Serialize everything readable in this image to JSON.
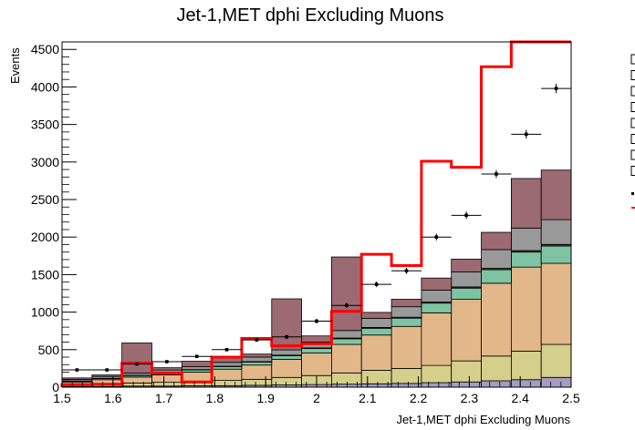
{
  "chart_data": {
    "type": "histogram",
    "title": "Jet-1,MET dphi Excluding Muons",
    "xlabel": "Jet-1,MET dphi Excluding Muons",
    "ylabel": "Events",
    "xlim": [
      1.5,
      2.5
    ],
    "ylim": [
      0,
      4600
    ],
    "bin_edges": [
      1.5,
      1.5588,
      1.6176,
      1.6765,
      1.7353,
      1.7941,
      1.8529,
      1.9118,
      1.9706,
      2.0294,
      2.0882,
      2.1471,
      2.2059,
      2.2647,
      2.3235,
      2.3824,
      2.4412,
      2.5
    ],
    "x_ticks": [
      1.5,
      1.6,
      1.7,
      1.8,
      1.9,
      2.0,
      2.1,
      2.2,
      2.3,
      2.4,
      2.5
    ],
    "x_tick_labels": [
      "1.5",
      "1.6",
      "1.7",
      "1.8",
      "1.9",
      "2",
      "2.1",
      "2.2",
      "2.3",
      "2.4",
      "2.5"
    ],
    "y_ticks": [
      0,
      500,
      1000,
      1500,
      2000,
      2500,
      3000,
      3500,
      4000,
      4500
    ],
    "y_tick_labels": [
      "0",
      "500",
      "1000",
      "1500",
      "2000",
      "2500",
      "3000",
      "3500",
      "4000",
      "4500"
    ],
    "stack": [
      {
        "color": "#a49dbf",
        "values": [
          10,
          10,
          15,
          15,
          20,
          20,
          25,
          30,
          35,
          40,
          45,
          50,
          60,
          70,
          85,
          100,
          130
        ]
      },
      {
        "color": "#d4cf8a",
        "values": [
          20,
          30,
          40,
          50,
          60,
          70,
          80,
          100,
          120,
          150,
          180,
          200,
          230,
          280,
          330,
          380,
          440
        ]
      },
      {
        "color": "#e2b88a",
        "values": [
          40,
          60,
          80,
          100,
          120,
          150,
          190,
          240,
          300,
          380,
          470,
          560,
          700,
          820,
          970,
          1120,
          1080
        ]
      },
      {
        "color": "#7fc4a2",
        "values": [
          10,
          15,
          20,
          25,
          30,
          35,
          40,
          50,
          60,
          75,
          90,
          110,
          130,
          150,
          180,
          200,
          230
        ]
      },
      {
        "color": "#3c3c3c",
        "values": [
          3,
          3,
          4,
          4,
          5,
          5,
          6,
          7,
          8,
          10,
          11,
          12,
          14,
          16,
          18,
          20,
          22
        ]
      },
      {
        "color": "#999999",
        "values": [
          20,
          25,
          30,
          35,
          40,
          50,
          60,
          70,
          80,
          100,
          120,
          140,
          160,
          200,
          250,
          300,
          330
        ]
      },
      {
        "color": "#9c6a72",
        "values": [
          20,
          20,
          400,
          30,
          70,
          70,
          40,
          680,
          80,
          980,
          80,
          100,
          160,
          170,
          230,
          660,
          660
        ]
      }
    ],
    "signal": {
      "color": "#ff0000",
      "values": [
        35,
        40,
        320,
        190,
        70,
        400,
        650,
        550,
        580,
        1010,
        1770,
        1620,
        3010,
        2930,
        4270,
        4800,
        4800
      ]
    },
    "data_points": {
      "y": [
        230,
        230,
        310,
        340,
        410,
        500,
        630,
        670,
        880,
        1090,
        1370,
        1550,
        2000,
        2290,
        2840,
        3370,
        3980
      ],
      "yerr": [
        15,
        15,
        18,
        18,
        20,
        22,
        25,
        26,
        30,
        33,
        37,
        39,
        45,
        48,
        53,
        58,
        63
      ]
    }
  }
}
